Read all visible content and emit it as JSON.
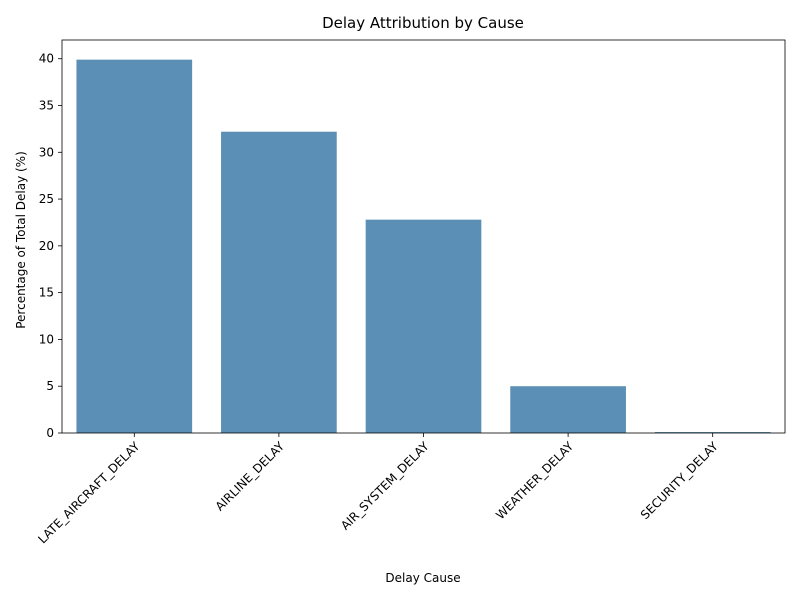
{
  "chart_data": {
    "type": "bar",
    "title": "Delay Attribution by Cause",
    "xlabel": "Delay Cause",
    "ylabel": "Percentage of Total Delay (%)",
    "categories": [
      "LATE_AIRCRAFT_DELAY",
      "AIRLINE_DELAY",
      "AIR_SYSTEM_DELAY",
      "WEATHER_DELAY",
      "SECURITY_DELAY"
    ],
    "values": [
      39.9,
      32.2,
      22.8,
      5.0,
      0.1
    ],
    "ylim": [
      0,
      42
    ],
    "yticks": [
      0,
      5,
      10,
      15,
      20,
      25,
      30,
      35,
      40
    ],
    "bar_color": "#5b8fb5",
    "grid": false,
    "legend": "none",
    "xtick_rotation": 45
  }
}
